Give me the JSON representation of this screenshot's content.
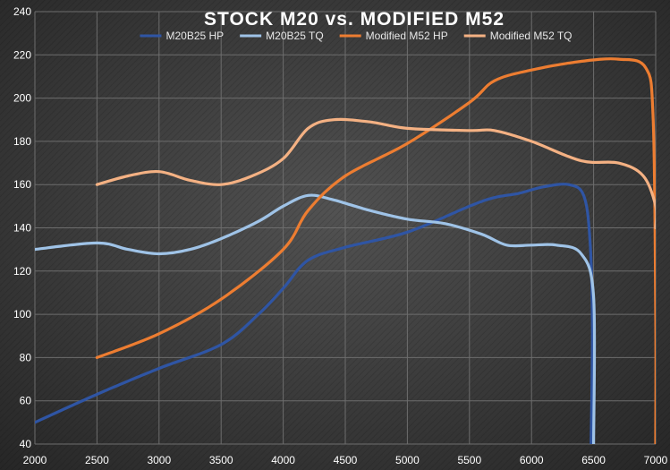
{
  "chart_data": {
    "type": "line",
    "title": "STOCK M20 vs. MODIFIED M52",
    "xlim": [
      2000,
      7000
    ],
    "ylim": [
      40,
      240
    ],
    "xticks": [
      2000,
      2500,
      3000,
      3500,
      4000,
      4500,
      5000,
      5500,
      6000,
      6500,
      7000
    ],
    "yticks": [
      40,
      60,
      80,
      100,
      120,
      140,
      160,
      180,
      200,
      220,
      240
    ],
    "grid": true,
    "legend_position": "top",
    "series": [
      {
        "name": "M20B25 HP",
        "color": "#2f55a4",
        "points": [
          [
            2000,
            50
          ],
          [
            2500,
            63
          ],
          [
            3000,
            75
          ],
          [
            3500,
            86
          ],
          [
            3800,
            100
          ],
          [
            4000,
            112
          ],
          [
            4200,
            125
          ],
          [
            4500,
            131
          ],
          [
            5000,
            138
          ],
          [
            5500,
            150
          ],
          [
            5700,
            154
          ],
          [
            5900,
            156
          ],
          [
            6100,
            159
          ],
          [
            6300,
            160
          ],
          [
            6420,
            155
          ],
          [
            6470,
            135
          ],
          [
            6490,
            95
          ],
          [
            6480,
            40
          ]
        ]
      },
      {
        "name": "M20B25 TQ",
        "color": "#9fc3e7",
        "points": [
          [
            2000,
            130
          ],
          [
            2500,
            133
          ],
          [
            2750,
            130
          ],
          [
            3000,
            128
          ],
          [
            3250,
            130
          ],
          [
            3500,
            135
          ],
          [
            3800,
            143
          ],
          [
            4000,
            150
          ],
          [
            4200,
            155
          ],
          [
            4400,
            153
          ],
          [
            4700,
            148
          ],
          [
            5000,
            144
          ],
          [
            5300,
            142
          ],
          [
            5600,
            137
          ],
          [
            5800,
            132
          ],
          [
            6000,
            132
          ],
          [
            6200,
            132
          ],
          [
            6400,
            128
          ],
          [
            6500,
            108
          ],
          [
            6500,
            40
          ]
        ]
      },
      {
        "name": "Modified M52 HP",
        "color": "#ed7d31",
        "points": [
          [
            2500,
            80
          ],
          [
            3000,
            91
          ],
          [
            3500,
            107
          ],
          [
            4000,
            130
          ],
          [
            4200,
            148
          ],
          [
            4500,
            164
          ],
          [
            5000,
            179
          ],
          [
            5500,
            198
          ],
          [
            5700,
            208
          ],
          [
            6000,
            213
          ],
          [
            6400,
            217
          ],
          [
            6700,
            218
          ],
          [
            6920,
            214
          ],
          [
            6980,
            190
          ],
          [
            7000,
            100
          ],
          [
            7000,
            40
          ]
        ]
      },
      {
        "name": "Modified M52 TQ",
        "color": "#f4b183",
        "points": [
          [
            2500,
            160
          ],
          [
            2750,
            164
          ],
          [
            3000,
            166
          ],
          [
            3250,
            162
          ],
          [
            3500,
            160
          ],
          [
            3750,
            164
          ],
          [
            4000,
            172
          ],
          [
            4200,
            186
          ],
          [
            4400,
            190
          ],
          [
            4700,
            189
          ],
          [
            5000,
            186
          ],
          [
            5500,
            185
          ],
          [
            5700,
            185
          ],
          [
            6000,
            180
          ],
          [
            6400,
            171
          ],
          [
            6700,
            170
          ],
          [
            6900,
            164
          ],
          [
            7000,
            150
          ],
          [
            7000,
            140
          ]
        ]
      }
    ]
  }
}
